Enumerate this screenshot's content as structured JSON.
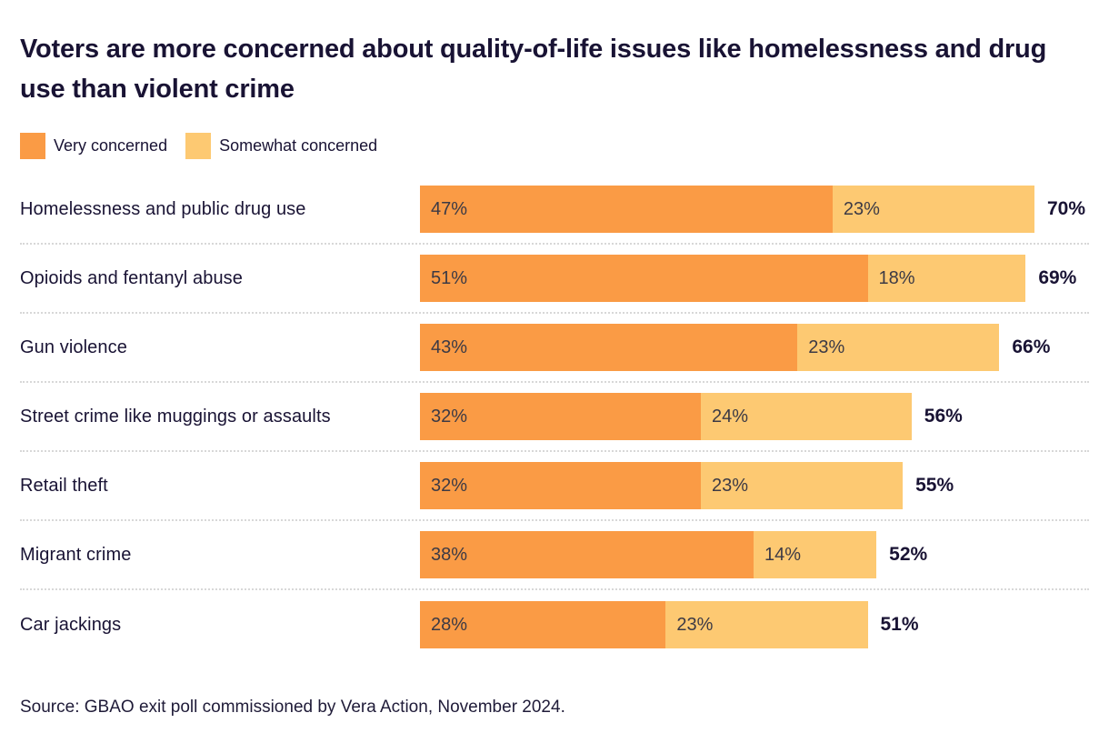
{
  "title": "Voters are more concerned about quality-of-life issues like homelessness and drug use than violent crime",
  "legend": {
    "items": [
      {
        "label": "Very concerned",
        "color": "#FA9B45"
      },
      {
        "label": "Somewhat concerned",
        "color": "#FDC972"
      }
    ]
  },
  "chart_data": {
    "type": "bar",
    "orientation": "horizontal",
    "stacked": true,
    "title": "Voters are more concerned about quality-of-life issues like homelessness and drug use than violent crime",
    "categories": [
      "Homelessness and public drug use",
      "Opioids and fentanyl abuse",
      "Gun violence",
      "Street crime like muggings or assaults",
      "Retail theft",
      "Migrant crime",
      "Car jackings"
    ],
    "series": [
      {
        "name": "Very concerned",
        "color": "#FA9B45",
        "values": [
          47,
          51,
          43,
          32,
          32,
          38,
          28
        ]
      },
      {
        "name": "Somewhat concerned",
        "color": "#FDC972",
        "values": [
          23,
          18,
          23,
          24,
          23,
          14,
          23
        ]
      }
    ],
    "totals": [
      "70%",
      "69%",
      "66%",
      "56%",
      "55%",
      "52%",
      "51%"
    ],
    "segment_labels": [
      [
        "47%",
        "23%"
      ],
      [
        "51%",
        "18%"
      ],
      [
        "43%",
        "23%"
      ],
      [
        "32%",
        "24%"
      ],
      [
        "32%",
        "23%"
      ],
      [
        "38%",
        "14%"
      ],
      [
        "28%",
        "23%"
      ]
    ],
    "xlim": [
      0,
      70
    ],
    "value_suffix": "%",
    "grid": false,
    "legend_position": "top"
  },
  "source": "Source: GBAO exit poll commissioned by Vera Action, November 2024.",
  "colors": {
    "very_concerned": "#FA9B45",
    "somewhat_concerned": "#FDC972",
    "title_text": "#191334",
    "segment_label_text": "#3c3a45",
    "separator": "#d8d8d8",
    "background": "#ffffff"
  }
}
